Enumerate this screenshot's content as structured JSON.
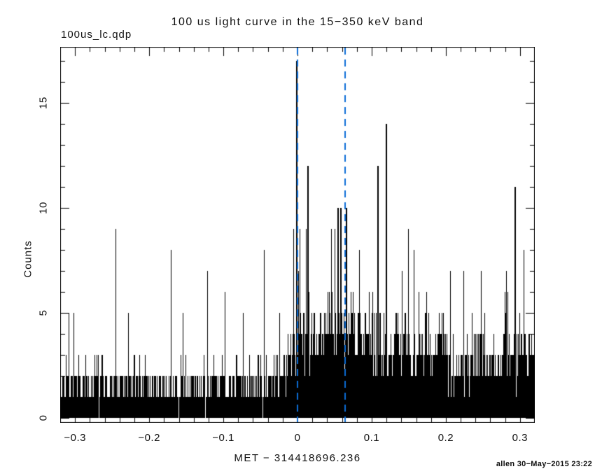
{
  "header": {
    "filename": "100us_lc.qdp"
  },
  "footer": {
    "text": "allen 30−May−2015 23:22"
  },
  "chart_data": {
    "type": "bar",
    "title": "100 us light curve in the 15−350 keV band",
    "xlabel": "MET − 314418696.236",
    "ylabel": "Counts",
    "bin_seconds": 0.0001,
    "xlim": [
      -0.32,
      0.32
    ],
    "ylim": [
      -0.2,
      17.67
    ],
    "grid": false,
    "x_major_ticks": [
      -0.3,
      -0.2,
      -0.1,
      0,
      0.1,
      0.2,
      0.3
    ],
    "x_tick_labels": [
      "−0.3",
      "−0.2",
      "−0.1",
      "0",
      "0.1",
      "0.2",
      "0.3"
    ],
    "x_minor_step": 0.02,
    "y_major_ticks": [
      0,
      5,
      10,
      15
    ],
    "y_tick_labels": [
      "0",
      "5",
      "10",
      "15"
    ],
    "y_minor_step": 1,
    "colors": {
      "background": "#ffffff",
      "frame": "#000000",
      "data": "#000000",
      "vline": "#0b6dd7",
      "text": "#111111"
    },
    "vlines": {
      "style": "dashed",
      "color": "#0b6dd7",
      "x": [
        0.0,
        0.064
      ]
    },
    "rate_profile": [
      {
        "from": -0.32,
        "to": -0.04,
        "rate": 0.5
      },
      {
        "from": -0.04,
        "to": -0.022,
        "rate": 0.75
      },
      {
        "from": -0.022,
        "to": -0.008,
        "rate": 1.1
      },
      {
        "from": -0.008,
        "to": 0.0,
        "rate": 1.5
      },
      {
        "from": 0.0,
        "to": 0.02,
        "rate": 1.9
      },
      {
        "from": 0.02,
        "to": 0.05,
        "rate": 2.2
      },
      {
        "from": 0.05,
        "to": 0.075,
        "rate": 2.3
      },
      {
        "from": 0.075,
        "to": 0.1,
        "rate": 1.8
      },
      {
        "from": 0.1,
        "to": 0.145,
        "rate": 1.5
      },
      {
        "from": 0.145,
        "to": 0.2,
        "rate": 1.35
      },
      {
        "from": 0.2,
        "to": 0.27,
        "rate": 1.15
      },
      {
        "from": 0.27,
        "to": 0.32,
        "rate": 1.25
      }
    ],
    "notable_spikes": [
      {
        "t": -0.309,
        "counts": 5
      },
      {
        "t": -0.302,
        "counts": 5
      },
      {
        "t": -0.245,
        "counts": 9
      },
      {
        "t": -0.228,
        "counts": 5
      },
      {
        "t": -0.171,
        "counts": 8
      },
      {
        "t": -0.122,
        "counts": 7
      },
      {
        "t": -0.098,
        "counts": 6
      },
      {
        "t": -0.074,
        "counts": 5
      },
      {
        "t": -0.045,
        "counts": 8
      },
      {
        "t": -0.006,
        "counts": 9
      },
      {
        "t": -0.0015,
        "counts": 17
      },
      {
        "t": 0.003,
        "counts": 9
      },
      {
        "t": 0.0115,
        "counts": 9
      },
      {
        "t": 0.0133,
        "counts": 12
      },
      {
        "t": 0.045,
        "counts": 9
      },
      {
        "t": 0.05,
        "counts": 9
      },
      {
        "t": 0.054,
        "counts": 10
      },
      {
        "t": 0.058,
        "counts": 10
      },
      {
        "t": 0.065,
        "counts": 10
      },
      {
        "t": 0.083,
        "counts": 8
      },
      {
        "t": 0.108,
        "counts": 12
      },
      {
        "t": 0.119,
        "counts": 14
      },
      {
        "t": 0.149,
        "counts": 9
      },
      {
        "t": 0.157,
        "counts": 8
      },
      {
        "t": 0.206,
        "counts": 7
      },
      {
        "t": 0.224,
        "counts": 7
      },
      {
        "t": 0.247,
        "counts": 7
      },
      {
        "t": 0.281,
        "counts": 7
      },
      {
        "t": 0.293,
        "counts": 11
      },
      {
        "t": 0.305,
        "counts": 8
      }
    ],
    "render": {
      "seed": 20150530,
      "samples_per_column": 9
    }
  }
}
